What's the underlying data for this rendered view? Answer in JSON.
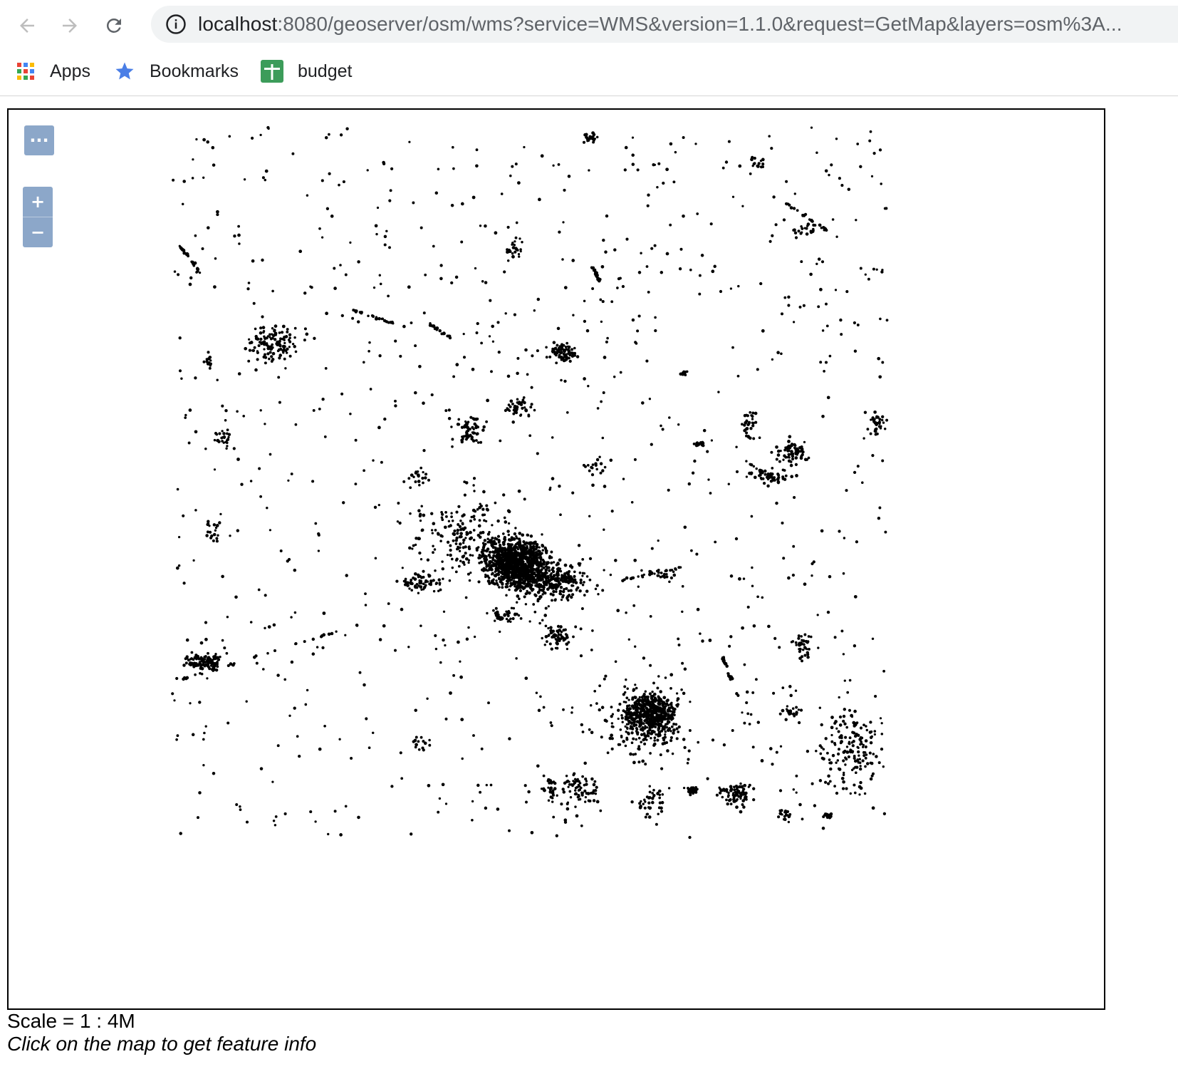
{
  "browser": {
    "url_host": "localhost",
    "url_rest": ":8080/geoserver/osm/wms?service=WMS&version=1.1.0&request=GetMap&layers=osm%3A...",
    "bookmarks": [
      {
        "label": "Apps",
        "icon": "apps-grid-icon"
      },
      {
        "label": "Bookmarks",
        "icon": "star-icon"
      },
      {
        "label": "budget",
        "icon": "sheets-icon"
      }
    ]
  },
  "map": {
    "scale_text": "Scale = 1 : 4M",
    "hint_text": "Click on the map to get feature info",
    "toggle_label": "···",
    "zoom_in_label": "+",
    "zoom_out_label": "−",
    "point_color": "#000000"
  }
}
